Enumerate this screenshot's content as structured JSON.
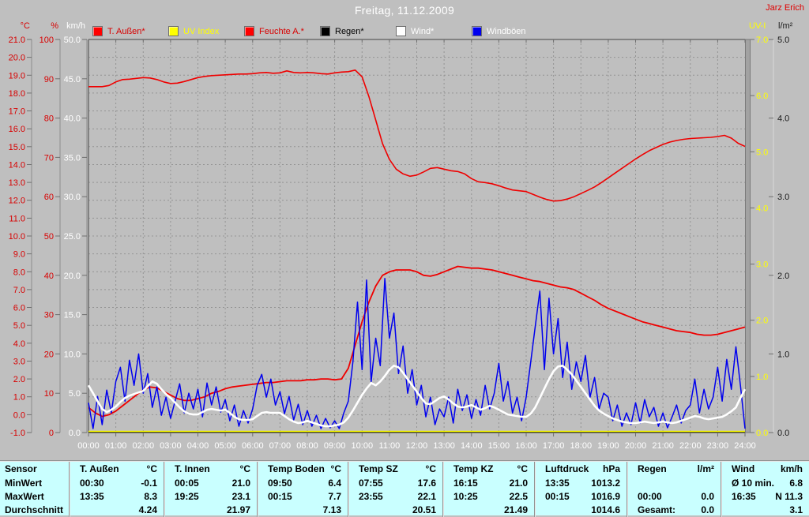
{
  "header": {
    "title": "Freitag, 11.12.2009",
    "author": "Jarz Erich",
    "left_units": {
      "temp": "°C",
      "humidity": "%",
      "wind": "km/h"
    },
    "right_units": {
      "uv": "UV-I",
      "rain": "l/m²"
    }
  },
  "legend": [
    {
      "label": "T. Außen*",
      "swatch": "#ff0000",
      "text_color": "#d80000"
    },
    {
      "label": "UV Index",
      "swatch": "#ffff00",
      "text_color": "#ffff00"
    },
    {
      "label": "Feuchte A.*",
      "swatch": "#ff0000",
      "text_color": "#d80000"
    },
    {
      "label": "Regen*",
      "swatch": "#000000",
      "text_color": "#000000"
    },
    {
      "label": "Wind*",
      "swatch": "#ffffff",
      "text_color": "#ffffff"
    },
    {
      "label": "Windböen",
      "swatch": "#0000ee",
      "text_color": "#ffffff"
    }
  ],
  "chart_data": {
    "type": "line",
    "title": "Freitag, 11.12.2009",
    "grid": true,
    "x_ticks": [
      "00:00",
      "01:00",
      "02:00",
      "03:00",
      "04:00",
      "05:00",
      "06:00",
      "07:00",
      "08:00",
      "09:00",
      "10:00",
      "11:00",
      "12:00",
      "13:00",
      "14:00",
      "15:00",
      "16:00",
      "17:00",
      "18:00",
      "19:00",
      "20:00",
      "21:00",
      "22:00",
      "23:00",
      "24:00"
    ],
    "axes": {
      "temp": {
        "min": -1,
        "max": 21,
        "unit": "°C",
        "ticks": [
          "21.0",
          "20.0",
          "19.0",
          "18.0",
          "17.0",
          "16.0",
          "15.0",
          "14.0",
          "13.0",
          "12.0",
          "11.0",
          "10.0",
          "9.0",
          "8.0",
          "7.0",
          "6.0",
          "5.0",
          "4.0",
          "3.0",
          "2.0",
          "1.0",
          "0.0",
          "-1.0"
        ]
      },
      "humidity": {
        "min": 0,
        "max": 100,
        "unit": "%",
        "ticks": [
          "100",
          "90",
          "80",
          "70",
          "60",
          "50",
          "40",
          "30",
          "20",
          "10",
          "0"
        ]
      },
      "wind": {
        "min": 0,
        "max": 50,
        "unit": "km/h",
        "ticks": [
          "50.0",
          "45.0",
          "40.0",
          "35.0",
          "30.0",
          "25.0",
          "20.0",
          "15.0",
          "10.0",
          "5.0",
          "0.0"
        ]
      },
      "uv": {
        "min": 0,
        "max": 7,
        "unit": "UV-I",
        "ticks": [
          "7.0",
          "6.0",
          "5.0",
          "4.0",
          "3.0",
          "2.0",
          "1.0",
          "0.0"
        ]
      },
      "rain": {
        "min": 0,
        "max": 5,
        "unit": "l/m²",
        "ticks": [
          "5.0",
          "4.0",
          "3.0",
          "2.0",
          "1.0",
          "0.0"
        ]
      }
    },
    "series": [
      {
        "key": "feuchte",
        "name": "Feuchte A.*",
        "axis": "humidity",
        "color": "#ef0000",
        "interval_min": 15,
        "values": [
          88,
          88,
          88,
          88.3,
          89.2,
          89.8,
          89.9,
          90.1,
          90.3,
          90.2,
          89.8,
          89.2,
          88.8,
          88.9,
          89.3,
          89.8,
          90.3,
          90.6,
          90.8,
          90.9,
          91.0,
          91.1,
          91.2,
          91.2,
          91.3,
          91.5,
          91.6,
          91.4,
          91.5,
          92.0,
          91.6,
          91.5,
          91.6,
          91.5,
          91.3,
          91.2,
          91.5,
          91.7,
          91.8,
          92.2,
          90.5,
          85.5,
          79.5,
          73.5,
          69.5,
          67.0,
          65.8,
          65.2,
          65.5,
          66.3,
          67.2,
          67.4,
          67.0,
          66.6,
          66.4,
          65.8,
          64.6,
          63.8,
          63.6,
          63.3,
          62.8,
          62.2,
          61.7,
          61.5,
          61.3,
          60.6,
          59.9,
          59.3,
          58.9,
          59.0,
          59.4,
          60.0,
          60.8,
          61.6,
          62.5,
          63.6,
          64.8,
          66.0,
          67.2,
          68.4,
          69.6,
          70.7,
          71.7,
          72.5,
          73.3,
          73.9,
          74.3,
          74.6,
          74.8,
          74.9,
          75.0,
          75.1,
          75.3,
          75.6,
          74.9,
          73.6,
          72.8
        ]
      },
      {
        "key": "t_aussen",
        "name": "T. Außen*",
        "axis": "temp",
        "color": "#ef0000",
        "interval_min": 15,
        "values": [
          0.4,
          0.1,
          -0.1,
          0.0,
          0.2,
          0.5,
          0.8,
          1.1,
          1.4,
          1.55,
          1.5,
          1.3,
          1.1,
          0.9,
          0.8,
          0.8,
          0.9,
          1.0,
          1.2,
          1.3,
          1.45,
          1.55,
          1.6,
          1.65,
          1.7,
          1.75,
          1.8,
          1.8,
          1.85,
          1.9,
          1.9,
          1.9,
          1.95,
          1.95,
          2.0,
          2.0,
          1.95,
          2.0,
          2.6,
          3.9,
          5.2,
          6.3,
          7.2,
          7.8,
          8.0,
          8.1,
          8.1,
          8.1,
          8.0,
          7.8,
          7.75,
          7.85,
          8.0,
          8.15,
          8.3,
          8.25,
          8.2,
          8.2,
          8.15,
          8.1,
          8.0,
          7.9,
          7.8,
          7.7,
          7.6,
          7.5,
          7.45,
          7.35,
          7.25,
          7.15,
          7.1,
          7.0,
          6.8,
          6.6,
          6.4,
          6.15,
          5.95,
          5.8,
          5.65,
          5.5,
          5.35,
          5.2,
          5.1,
          5.0,
          4.9,
          4.8,
          4.7,
          4.65,
          4.6,
          4.5,
          4.45,
          4.45,
          4.5,
          4.6,
          4.7,
          4.8,
          4.9
        ]
      },
      {
        "key": "windboeen",
        "name": "Windböen",
        "axis": "wind",
        "color": "#0000ee",
        "interval_min": 10,
        "values": [
          3.8,
          0.5,
          4.6,
          1.0,
          5.4,
          2.5,
          6.5,
          8.3,
          4.0,
          9.2,
          6.0,
          10.0,
          5.0,
          7.5,
          3.2,
          5.8,
          2.2,
          4.5,
          1.8,
          4.0,
          6.2,
          2.5,
          5.0,
          3.0,
          5.5,
          2.0,
          6.3,
          3.5,
          5.8,
          2.6,
          4.2,
          1.5,
          3.5,
          0.8,
          2.8,
          1.2,
          3.0,
          6.0,
          7.4,
          4.5,
          6.8,
          3.5,
          5.2,
          2.4,
          4.6,
          1.6,
          3.6,
          1.0,
          2.8,
          0.8,
          2.2,
          0.5,
          1.8,
          0.6,
          1.5,
          0.5,
          2.5,
          4.0,
          9.0,
          16.6,
          8.0,
          19.4,
          6.5,
          12.0,
          8.5,
          19.6,
          12.0,
          15.2,
          7.5,
          11.0,
          5.0,
          8.0,
          3.5,
          6.0,
          2.0,
          4.5,
          1.0,
          3.0,
          2.0,
          4.5,
          1.2,
          5.5,
          2.8,
          4.8,
          1.8,
          4.2,
          2.2,
          6.0,
          3.0,
          5.0,
          8.8,
          4.0,
          6.5,
          2.5,
          4.5,
          1.5,
          4.5,
          9.0,
          13.5,
          18.0,
          8.0,
          17.1,
          10.0,
          14.5,
          7.0,
          11.5,
          5.5,
          9.0,
          6.5,
          9.8,
          4.5,
          7.0,
          3.0,
          5.0,
          4.5,
          1.5,
          3.5,
          0.8,
          2.5,
          1.0,
          3.8,
          1.2,
          4.2,
          2.0,
          3.2,
          0.8,
          2.5,
          0.6,
          2.0,
          3.5,
          1.2,
          2.8,
          3.5,
          6.8,
          2.5,
          5.5,
          3.0,
          4.5,
          8.3,
          4.0,
          9.3,
          5.5,
          10.9,
          6.0,
          0.5
        ]
      },
      {
        "key": "wind",
        "name": "Wind*",
        "axis": "wind",
        "color": "#ffffff",
        "interval_min": 10,
        "values": [
          6.0,
          5.0,
          4.0,
          3.0,
          2.6,
          2.9,
          3.3,
          3.9,
          4.4,
          4.7,
          4.9,
          5.1,
          5.3,
          5.9,
          6.5,
          6.2,
          5.5,
          4.9,
          4.4,
          3.8,
          3.2,
          2.7,
          2.4,
          2.3,
          2.3,
          2.6,
          2.9,
          3.0,
          2.9,
          2.8,
          2.9,
          2.5,
          2.0,
          1.7,
          1.6,
          1.6,
          1.7,
          2.1,
          2.5,
          2.6,
          2.5,
          2.5,
          2.5,
          2.1,
          1.7,
          1.4,
          1.2,
          1.3,
          1.5,
          1.3,
          1.1,
          0.9,
          0.8,
          0.8,
          0.9,
          1.0,
          1.3,
          1.9,
          2.8,
          3.8,
          4.8,
          5.6,
          6.3,
          6.0,
          6.5,
          7.2,
          8.0,
          8.5,
          8.3,
          7.6,
          6.8,
          6.0,
          5.2,
          4.4,
          3.7,
          3.6,
          4.0,
          4.4,
          4.6,
          4.2,
          3.7,
          3.3,
          3.2,
          3.3,
          3.5,
          3.2,
          2.9,
          3.1,
          3.4,
          3.2,
          2.9,
          2.6,
          2.3,
          2.2,
          2.1,
          2.0,
          2.0,
          2.4,
          3.2,
          4.4,
          5.6,
          6.8,
          7.8,
          8.4,
          8.5,
          8.0,
          7.4,
          6.6,
          5.8,
          5.0,
          4.2,
          3.4,
          2.8,
          2.4,
          2.1,
          1.8,
          1.6,
          1.4,
          1.3,
          1.2,
          1.2,
          1.3,
          1.4,
          1.3,
          1.2,
          1.3,
          1.4,
          1.3,
          1.2,
          1.3,
          1.5,
          1.7,
          1.9,
          2.1,
          2.0,
          1.8,
          1.7,
          1.8,
          1.9,
          2.0,
          2.3,
          2.7,
          3.2,
          4.4,
          5.5
        ]
      },
      {
        "key": "regen",
        "name": "Regen*",
        "axis": "rain",
        "color": "#000000",
        "interval_min": 1440,
        "values": [
          0.005,
          0.005
        ]
      },
      {
        "key": "uv",
        "name": "UV Index",
        "axis": "uv",
        "color": "#ffff00",
        "interval_min": 1440,
        "values": [
          0.02,
          0.02
        ]
      }
    ]
  },
  "table": {
    "row_labels": [
      "Sensor",
      "MinWert",
      "MaxWert",
      "Durchschnitt"
    ],
    "columns": [
      {
        "name": "T. Außen",
        "unit": "°C",
        "min_time": "00:30",
        "min_value": "-0.1",
        "max_time": "13:35",
        "max_value": "8.3",
        "avg_label": "",
        "avg_value": "4.24"
      },
      {
        "name": "T. Innen",
        "unit": "°C",
        "min_time": "00:05",
        "min_value": "21.0",
        "max_time": "19:25",
        "max_value": "23.1",
        "avg_label": "",
        "avg_value": "21.97"
      },
      {
        "name": "Temp Boden",
        "unit": "°C",
        "min_time": "09:50",
        "min_value": "6.4",
        "max_time": "00:15",
        "max_value": "7.7",
        "avg_label": "",
        "avg_value": "7.13"
      },
      {
        "name": "Temp SZ",
        "unit": "°C",
        "min_time": "07:55",
        "min_value": "17.6",
        "max_time": "23:55",
        "max_value": "22.1",
        "avg_label": "",
        "avg_value": "20.51"
      },
      {
        "name": "Temp KZ",
        "unit": "°C",
        "min_time": "16:15",
        "min_value": "21.0",
        "max_time": "10:25",
        "max_value": "22.5",
        "avg_label": "",
        "avg_value": "21.49"
      },
      {
        "name": "Luftdruck",
        "unit": "hPa",
        "min_time": "13:35",
        "min_value": "1013.2",
        "max_time": "00:15",
        "max_value": "1016.9",
        "avg_label": "",
        "avg_value": "1014.6"
      },
      {
        "name": "Regen",
        "unit": "l/m²",
        "min_time": "",
        "min_value": "",
        "max_time": "00:00",
        "max_value": "0.0",
        "avg_label": "Gesamt:",
        "avg_value": "0.0"
      },
      {
        "name": "Wind",
        "unit": "km/h",
        "min_time": "Ø 10 min.",
        "min_value": "6.8",
        "max_time": "16:35",
        "max_value": "N 11.3",
        "avg_label": "",
        "avg_value": "3.1"
      }
    ]
  },
  "colors": {
    "background": "#bfbfbf",
    "table_background": "#c9ffff",
    "grid": "#949494",
    "axis": "#6f6f6f",
    "temp_series": "#ef0000",
    "wind_series": "#ffffff",
    "gust_series": "#0000ee",
    "uv_series": "#ffff00",
    "label_red": "#d80000",
    "label_white": "#ffffff",
    "label_yellow": "#ffff00"
  }
}
